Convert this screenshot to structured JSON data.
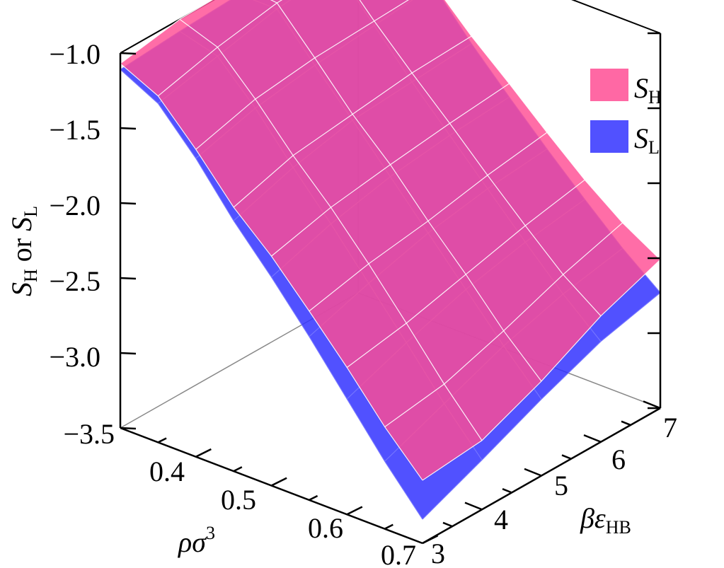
{
  "chart_data": {
    "type": "surface3d",
    "axes": {
      "z": {
        "label": {
          "main": "S",
          "sub1": "H",
          "mid": " or ",
          "main2": "S",
          "sub2": "L"
        },
        "ticks": [
          "−1.0",
          "−1.5",
          "−2.0",
          "−2.5",
          "−3.0",
          "−3.5"
        ],
        "range": [
          -3.5,
          -1.0
        ]
      },
      "x": {
        "label": {
          "main": "ρσ",
          "sup": "3"
        },
        "ticks": [
          "0.4",
          "0.5",
          "0.6",
          "0.7"
        ],
        "range": [
          0.3,
          0.7
        ]
      },
      "y": {
        "label": {
          "main": "βε",
          "sub": "HB"
        },
        "ticks": [
          "3",
          "4",
          "5",
          "6",
          "7"
        ],
        "range": [
          3,
          7
        ]
      }
    },
    "grid": {
      "rho": [
        0.3,
        0.35,
        0.4,
        0.45,
        0.5,
        0.55,
        0.6,
        0.65,
        0.7
      ],
      "beta": [
        3,
        4,
        5,
        6,
        7
      ]
    },
    "series": [
      {
        "key": "SH",
        "legend": {
          "main": "S",
          "sub": "H"
        },
        "color": "#ff4d94",
        "values": [
          [
            -1.07,
            -1.19,
            -1.45,
            -1.74,
            -1.97,
            -2.24,
            -2.52,
            -2.82,
            -3.08
          ],
          [
            -1.0,
            -1.09,
            -1.34,
            -1.62,
            -1.87,
            -2.15,
            -2.45,
            -2.76,
            -3.04
          ],
          [
            -0.99,
            -1.02,
            -1.29,
            -1.57,
            -1.81,
            -2.09,
            -2.35,
            -2.63,
            -2.87
          ],
          [
            -1.0,
            -1.0,
            -1.27,
            -1.52,
            -1.76,
            -2.01,
            -2.25,
            -2.48,
            -2.66
          ],
          [
            -1.02,
            -1.0,
            -1.25,
            -1.5,
            -1.72,
            -1.95,
            -2.17,
            -2.36,
            -2.51
          ]
        ]
      },
      {
        "key": "SL",
        "legend": {
          "main": "S",
          "sub": "L"
        },
        "color": "#3333ff",
        "values": [
          [
            -1.11,
            -1.24,
            -1.51,
            -1.83,
            -2.11,
            -2.41,
            -2.73,
            -3.05,
            -3.34
          ],
          [
            -1.08,
            -1.15,
            -1.4,
            -1.7,
            -1.98,
            -2.28,
            -2.58,
            -2.89,
            -3.17
          ],
          [
            -1.06,
            -1.06,
            -1.34,
            -1.61,
            -1.89,
            -2.17,
            -2.45,
            -2.73,
            -2.99
          ],
          [
            -1.03,
            -1.02,
            -1.3,
            -1.58,
            -1.84,
            -2.1,
            -2.36,
            -2.61,
            -2.83
          ],
          [
            -0.97,
            -0.99,
            -1.26,
            -1.55,
            -1.81,
            -2.06,
            -2.3,
            -2.53,
            -2.73
          ]
        ]
      }
    ]
  }
}
